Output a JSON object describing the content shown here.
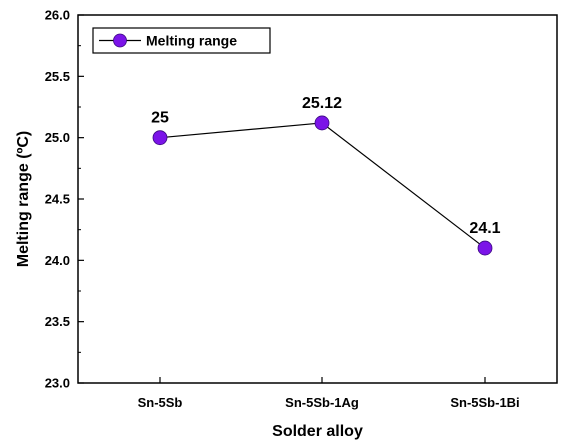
{
  "chart_data": {
    "type": "line",
    "categories": [
      "Sn-5Sb",
      "Sn-5Sb-1Ag",
      "Sn-5Sb-1Bi"
    ],
    "series": [
      {
        "name": "Melting range",
        "values": [
          25,
          25.12,
          24.1
        ]
      }
    ],
    "data_labels": [
      "25",
      "25.12",
      "24.1"
    ],
    "xlabel": "Solder alloy",
    "ylabel": "Melting range  (ºC)",
    "ylim": [
      23.0,
      26.0
    ],
    "yticks": [
      "23.0",
      "23.5",
      "24.0",
      "24.5",
      "25.0",
      "25.5",
      "26.0"
    ],
    "grid": false,
    "legend_position": "top-left",
    "marker_color": "#7B14E8",
    "line_color": "#000000"
  }
}
